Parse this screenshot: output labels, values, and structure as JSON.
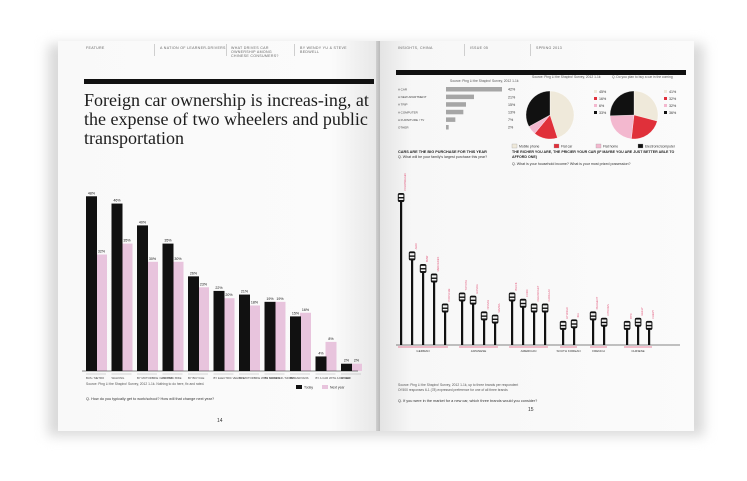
{
  "left": {
    "header": [
      "FEATURE",
      "A NATION OF LEARNER-DRIVERS",
      "WHAT DRIVES CAR OWNERSHIP AMONG CHINESE CONSUMERS?",
      "BY WENDY YU & STEVE BEDWELL"
    ],
    "title": "Foreign car ownership is increas-ing, at the expense of two wheelers and public transportation",
    "source": "Source: Ping Li the Shapiro! Survey, 2012 1-1k. Nothing to do here, fix and rated.",
    "question": "Q. How do you typically get to work/school? How will that change next year?",
    "page_number": "14",
    "legend": {
      "today": "Today",
      "next": "Next year"
    }
  },
  "right": {
    "header": [
      "INSIGHTS, CHINA",
      "ISSUE 05",
      "SPRING 2013"
    ],
    "source1": "Source: Ping Li the Shapiro! Survey, 2012 1-1k",
    "source_pie1": "Source: Ping Li the Shapiro! Survey, 2012 1-1k",
    "source_pie2": "Q. Do you plan to buy a car in the coming",
    "hbar_labels": [
      "A CAR",
      "A NEW APARTMENT",
      "A TRIP",
      "A COMPUTER",
      "A FURNITURE / TV",
      "OTHER"
    ],
    "hbar_values": [
      "42%",
      "21%",
      "15%",
      "13%",
      "7%",
      "2%"
    ],
    "pie_legend": [
      "Mobile phone",
      "Flat car",
      "Flat home",
      "Electronic/computer"
    ],
    "pie1_values": [
      "45%",
      "16%",
      "6%",
      "33%"
    ],
    "pie2_values": [
      "41%",
      "32%",
      "32%",
      "36%"
    ],
    "heading": "CARS ARE THE BIG PURCHASE FOR THIS YEAR",
    "q1": "Q. What will be your family's largest purchase this year?",
    "heading2": "THE RICHER YOU ARE, THE PRICIER YOUR CAR (IF MAYBE YOU ARE JUST BETTER ABLE TO AFFORD ONE)",
    "q2": "Q. What is your household income? What is your most prized possession?",
    "groups": [
      "GERMAN",
      "JAPANESE",
      "AMERICAN",
      "SOUTH KOREAN",
      "FRENCH",
      "CHINESE"
    ],
    "source2": "Source: Ping Li the Shapiro! Survey, 2012 1-1k, up to three brands per respondent",
    "source3": "Of 500 responses 6-1 (78) expressed preference for one of all three brands",
    "question": "Q. If you were in the market for a new car, which three brands would you consider?",
    "page_number": "15"
  },
  "chart_data": [
    {
      "type": "bar",
      "title": "Foreign car ownership is increas-ing, at the expense of two wheelers and public transportation",
      "categories": [
        "BUS / METRO",
        "WALKING",
        "BY MOTORBIKE / ELECTRIC BIKE",
        "BY TAXI",
        "BY BICYCLE",
        "BY ELECTRIC VEHICLE",
        "BY MOTORBIKE WITH OWNER",
        "BY SCOOTER / MOPED",
        "BY CAR/VANS",
        "BY A CAR WITH A DRIVER",
        "OTHER"
      ],
      "series": [
        {
          "name": "Today",
          "color": "#111111",
          "values": [
            48,
            46,
            40,
            35,
            26,
            22,
            21,
            19,
            15,
            4,
            2
          ]
        },
        {
          "name": "Next year",
          "color": "#e8c4dd",
          "values": [
            32,
            35,
            30,
            30,
            23,
            20,
            18,
            19,
            16,
            8,
            2
          ]
        }
      ],
      "value_labels": {
        "today": [
          "48%",
          "46%",
          "40%",
          "35%",
          "26%",
          "22%",
          "21%",
          "19%",
          "15%",
          "4%",
          "2%"
        ],
        "next": [
          "32%",
          "35%",
          "30%",
          "30%",
          "23%",
          "20%",
          "18%",
          "19%",
          "16%",
          "8%",
          "2%"
        ]
      },
      "ylim": [
        0,
        50
      ]
    },
    {
      "type": "bar",
      "title": "Q. What will be your family's largest purchase this year?",
      "categories": [
        "A CAR",
        "A NEW APARTMENT",
        "A TRIP",
        "A COMPUTER",
        "A FURNITURE / TV",
        "OTHER"
      ],
      "values": [
        42,
        21,
        15,
        13,
        7,
        2
      ]
    },
    {
      "type": "pie",
      "categories": [
        "Mobile phone",
        "Flat car",
        "Flat home",
        "Electronic/computer"
      ],
      "values": [
        45,
        16,
        6,
        33
      ],
      "colors": [
        "#efe9da",
        "#e0303a",
        "#f3b8cf",
        "#111111"
      ]
    },
    {
      "type": "pie",
      "categories": [
        "Mobile phone",
        "Flat car",
        "Flat home",
        "Electronic/computer"
      ],
      "values": [
        41,
        32,
        32,
        36
      ],
      "colors": [
        "#efe9da",
        "#e0303a",
        "#f3b8cf",
        "#111111"
      ]
    },
    {
      "type": "bar",
      "title": "Q. If you were in the market for a new car, which three brands would you consider?",
      "categories": [
        "VOLKSWAGEN",
        "AUDI",
        "BMW",
        "MERCEDES",
        "PORSCHE",
        "TOYOTA",
        "HONDA",
        "NISSAN",
        "MAZDA",
        "BUICK",
        "FORD",
        "CHEVROLET",
        "CADILLAC",
        "HYUNDAI",
        "KIA",
        "PEUGEOT",
        "CITROEN",
        "BYD",
        "GEELY",
        "CHERY"
      ],
      "groups": [
        "GERMAN",
        "GERMAN",
        "GERMAN",
        "GERMAN",
        "GERMAN",
        "JAPANESE",
        "JAPANESE",
        "JAPANESE",
        "JAPANESE",
        "AMERICAN",
        "AMERICAN",
        "AMERICAN",
        "AMERICAN",
        "SOUTH KOREAN",
        "SOUTH KOREAN",
        "FRENCH",
        "FRENCH",
        "CHINESE",
        "CHINESE",
        "CHINESE"
      ],
      "values": [
        95,
        58,
        50,
        44,
        25,
        32,
        30,
        20,
        18,
        32,
        28,
        25,
        25,
        14,
        15,
        20,
        16,
        14,
        16,
        14
      ]
    }
  ]
}
